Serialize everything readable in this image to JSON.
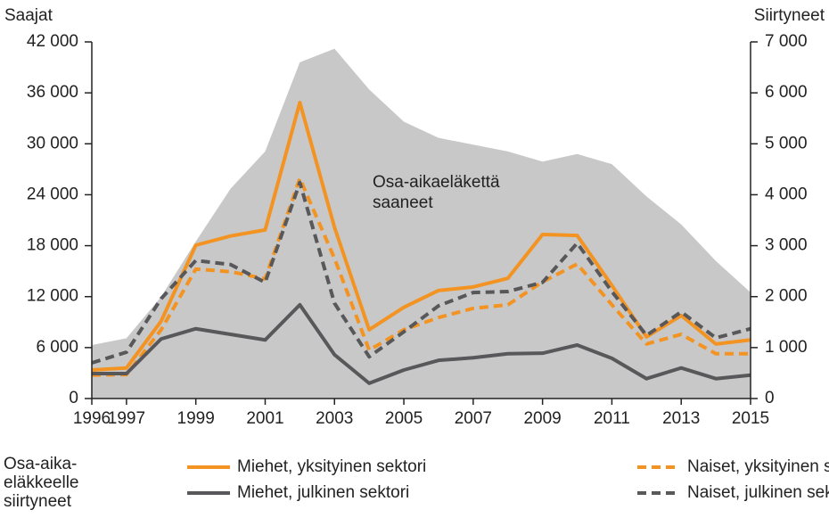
{
  "chart_data": {
    "type": "line",
    "y_label": "Saajat",
    "y2_label": "Siirtyneet",
    "annotation": [
      "Osa-aikaeläkettä",
      "saaneet"
    ],
    "legend_title": [
      "Osa-aika-",
      "eläkkeelle",
      "siirtyneet"
    ],
    "x": [
      1996,
      1997,
      1998,
      1999,
      2000,
      2001,
      2002,
      2003,
      2004,
      2005,
      2006,
      2007,
      2008,
      2009,
      2010,
      2011,
      2012,
      2013,
      2014,
      2015
    ],
    "xlim": [
      1996,
      2015
    ],
    "xticks": [
      1996,
      1997,
      1999,
      2001,
      2003,
      2005,
      2007,
      2009,
      2011,
      2013,
      2015
    ],
    "ylim": [
      0,
      42000
    ],
    "yticks": [
      0,
      {
        "value": 6000,
        "label": "6 000"
      },
      {
        "value": 12000,
        "label": "12 000"
      },
      {
        "value": 18000,
        "label": "18 000"
      },
      {
        "value": 24000,
        "label": "24 000"
      },
      {
        "value": 30000,
        "label": "30 000"
      },
      {
        "value": 36000,
        "label": "36 000"
      },
      {
        "value": 42000,
        "label": "42 000"
      }
    ],
    "y2lim": [
      0,
      7000
    ],
    "y2ticks": [
      0,
      {
        "value": 1000,
        "label": "1 000"
      },
      {
        "value": 2000,
        "label": "2 000"
      },
      {
        "value": 3000,
        "label": "3 000"
      },
      {
        "value": 4000,
        "label": "4 000"
      },
      {
        "value": 5000,
        "label": "5 000"
      },
      {
        "value": 6000,
        "label": "6 000"
      },
      {
        "value": 7000,
        "label": "7 000"
      }
    ],
    "area": {
      "color": "#c8c8c9",
      "values": [
        6300,
        7100,
        12000,
        18500,
        24700,
        29100,
        39600,
        41200,
        36400,
        32600,
        30700,
        29900,
        29100,
        27900,
        28800,
        27600,
        23800,
        20500,
        16200,
        12500
      ]
    },
    "series": [
      {
        "name": "Miehet, yksityinen sektori",
        "color": "#f39322",
        "dash": false,
        "axis": "y2",
        "values": [
          560,
          600,
          1520,
          3010,
          3190,
          3310,
          5810,
          3360,
          1350,
          1790,
          2120,
          2190,
          2360,
          3220,
          3200,
          2220,
          1210,
          1630,
          1070,
          1150
        ]
      },
      {
        "name": "Naiset, yksityinen sektori",
        "color": "#f39322",
        "dash": true,
        "axis": "y2",
        "values": [
          460,
          470,
          1350,
          2540,
          2490,
          2350,
          4320,
          2750,
          950,
          1350,
          1590,
          1770,
          1840,
          2290,
          2640,
          1840,
          1070,
          1260,
          880,
          880
        ]
      },
      {
        "name": "Miehet, julkinen sektori",
        "color": "#58585a",
        "dash": false,
        "axis": "y2",
        "values": [
          490,
          490,
          1170,
          1370,
          1260,
          1150,
          1840,
          860,
          300,
          560,
          750,
          800,
          880,
          890,
          1050,
          790,
          390,
          600,
          390,
          460
        ]
      },
      {
        "name": "Naiset, julkinen sektori",
        "color": "#58585a",
        "dash": true,
        "axis": "y2",
        "values": [
          700,
          910,
          1960,
          2710,
          2630,
          2280,
          4240,
          1870,
          820,
          1310,
          1820,
          2080,
          2100,
          2280,
          3050,
          2100,
          1240,
          1700,
          1190,
          1370
        ]
      }
    ]
  }
}
